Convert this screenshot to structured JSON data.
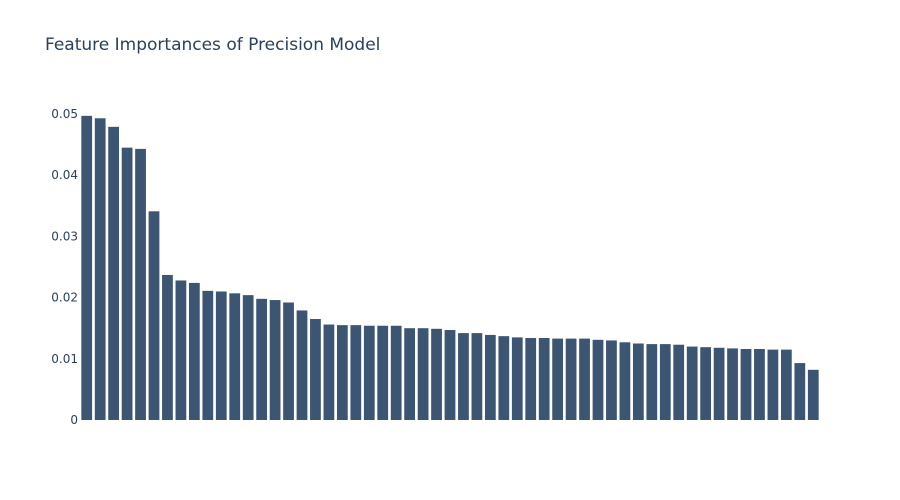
{
  "chart_data": {
    "type": "bar",
    "title": "Feature Importances of Precision Model",
    "xlabel": "",
    "ylabel": "",
    "x_tick_labels_visible": false,
    "ylim": [
      0,
      0.05
    ],
    "y_ticks": [
      0,
      0.01,
      0.02,
      0.03,
      0.04,
      0.05
    ],
    "y_tick_labels": [
      "0",
      "0.01",
      "0.02",
      "0.03",
      "0.04",
      "0.05"
    ],
    "grid": false,
    "legend": "none",
    "bar_color": "#3b5572",
    "values": [
      0.0497,
      0.0493,
      0.0479,
      0.0445,
      0.0443,
      0.0341,
      0.0237,
      0.0228,
      0.0224,
      0.0211,
      0.021,
      0.0207,
      0.0204,
      0.0198,
      0.0196,
      0.0192,
      0.0179,
      0.0165,
      0.0156,
      0.0155,
      0.0155,
      0.0154,
      0.0154,
      0.0154,
      0.015,
      0.015,
      0.0149,
      0.0147,
      0.0142,
      0.0142,
      0.0139,
      0.0137,
      0.0135,
      0.0134,
      0.0134,
      0.0133,
      0.0133,
      0.0133,
      0.0131,
      0.013,
      0.0127,
      0.0125,
      0.0124,
      0.0124,
      0.0123,
      0.012,
      0.0119,
      0.0118,
      0.0117,
      0.0116,
      0.0116,
      0.0115,
      0.0115,
      0.0093,
      0.0082
    ]
  }
}
